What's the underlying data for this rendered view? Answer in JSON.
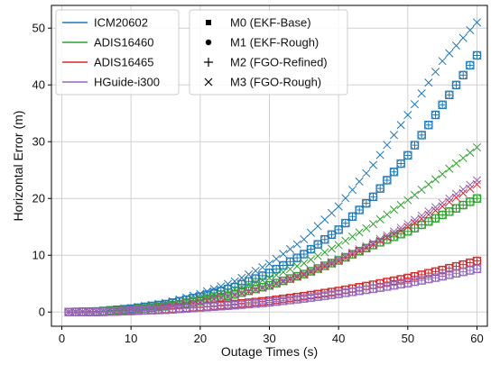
{
  "chart_data": {
    "type": "scatter",
    "xlabel": "Outage Times (s)",
    "ylabel": "Horizontal Error (m)",
    "xlim": [
      -1.5,
      61.5
    ],
    "ylim": [
      -2.5,
      54.0
    ],
    "xticks": [
      0,
      10,
      20,
      30,
      40,
      50,
      60
    ],
    "yticks": [
      0,
      10,
      20,
      30,
      40,
      50
    ],
    "xtick_labels": [
      "0",
      "10",
      "20",
      "30",
      "40",
      "50",
      "60"
    ],
    "ytick_labels": [
      "0",
      "10",
      "20",
      "30",
      "40",
      "50"
    ],
    "grid": true,
    "x": [
      1,
      2,
      3,
      4,
      5,
      6,
      7,
      8,
      9,
      10,
      11,
      12,
      13,
      14,
      15,
      16,
      17,
      18,
      19,
      20,
      21,
      22,
      23,
      24,
      25,
      26,
      27,
      28,
      29,
      30,
      31,
      32,
      33,
      34,
      35,
      36,
      37,
      38,
      39,
      40,
      41,
      42,
      43,
      44,
      45,
      46,
      47,
      48,
      49,
      50,
      51,
      52,
      53,
      54,
      55,
      56,
      57,
      58,
      59,
      60
    ],
    "colors": {
      "ICM20602": "#1f77b4",
      "ADIS16460": "#2ca02c",
      "ADIS16465": "#d62728",
      "HGuide-i300": "#9467bd"
    },
    "imu_legend": {
      "placement": "top-left",
      "entries": [
        "ICM20602",
        "ADIS16460",
        "ADIS16465",
        "HGuide-i300"
      ]
    },
    "method_legend": {
      "placement": "top-center",
      "entries": [
        {
          "marker": "square",
          "label": "M0 (EKF-Base)"
        },
        {
          "marker": "circle",
          "label": "M1 (EKF-Rough)"
        },
        {
          "marker": "plus",
          "label": "M2 (FGO-Refined)"
        },
        {
          "marker": "x",
          "label": "M3 (FGO-Rough)"
        }
      ]
    },
    "series": [
      {
        "name": "ICM20602",
        "method": "M0",
        "values_at_x": [
          [
            1,
            0.0
          ],
          [
            5,
            0.1
          ],
          [
            10,
            0.6
          ],
          [
            15,
            1.4
          ],
          [
            20,
            2.7
          ],
          [
            25,
            4.4
          ],
          [
            30,
            6.9
          ],
          [
            35,
            10.2
          ],
          [
            40,
            14.5
          ],
          [
            45,
            20.3
          ],
          [
            50,
            27.6
          ],
          [
            55,
            36.5
          ],
          [
            60,
            45.2
          ]
        ]
      },
      {
        "name": "ICM20602",
        "method": "M1",
        "values_at_x": [
          [
            1,
            0.0
          ],
          [
            5,
            0.1
          ],
          [
            10,
            0.6
          ],
          [
            15,
            1.4
          ],
          [
            20,
            2.7
          ],
          [
            25,
            4.4
          ],
          [
            30,
            6.9
          ],
          [
            35,
            10.2
          ],
          [
            40,
            14.5
          ],
          [
            45,
            20.3
          ],
          [
            50,
            27.6
          ],
          [
            55,
            36.5
          ],
          [
            60,
            45.2
          ]
        ]
      },
      {
        "name": "ICM20602",
        "method": "M2",
        "values_at_x": [
          [
            1,
            0.0
          ],
          [
            5,
            0.1
          ],
          [
            10,
            0.6
          ],
          [
            15,
            1.4
          ],
          [
            20,
            2.7
          ],
          [
            25,
            4.4
          ],
          [
            30,
            6.9
          ],
          [
            35,
            10.2
          ],
          [
            40,
            14.5
          ],
          [
            45,
            20.3
          ],
          [
            50,
            27.6
          ],
          [
            55,
            36.5
          ],
          [
            60,
            45.2
          ]
        ]
      },
      {
        "name": "ICM20602",
        "method": "M3",
        "values_at_x": [
          [
            1,
            0.0
          ],
          [
            5,
            0.1
          ],
          [
            10,
            0.7
          ],
          [
            15,
            1.6
          ],
          [
            20,
            3.2
          ],
          [
            25,
            5.4
          ],
          [
            30,
            8.5
          ],
          [
            35,
            12.8
          ],
          [
            40,
            18.6
          ],
          [
            45,
            25.9
          ],
          [
            50,
            34.7
          ],
          [
            55,
            44.2
          ],
          [
            60,
            51.0
          ]
        ]
      },
      {
        "name": "ADIS16460",
        "method": "M0",
        "values_at_x": [
          [
            1,
            0.0
          ],
          [
            5,
            0.1
          ],
          [
            10,
            0.4
          ],
          [
            15,
            1.0
          ],
          [
            20,
            1.9
          ],
          [
            25,
            3.1
          ],
          [
            30,
            4.7
          ],
          [
            35,
            6.7
          ],
          [
            40,
            9.1
          ],
          [
            45,
            11.8
          ],
          [
            50,
            14.2
          ],
          [
            55,
            17.1
          ],
          [
            60,
            20.0
          ]
        ]
      },
      {
        "name": "ADIS16460",
        "method": "M1",
        "values_at_x": [
          [
            1,
            0.0
          ],
          [
            5,
            0.1
          ],
          [
            10,
            0.4
          ],
          [
            15,
            1.0
          ],
          [
            20,
            1.9
          ],
          [
            25,
            3.1
          ],
          [
            30,
            4.7
          ],
          [
            35,
            6.7
          ],
          [
            40,
            9.1
          ],
          [
            45,
            11.8
          ],
          [
            50,
            14.2
          ],
          [
            55,
            17.1
          ],
          [
            60,
            20.0
          ]
        ]
      },
      {
        "name": "ADIS16460",
        "method": "M2",
        "values_at_x": [
          [
            1,
            0.0
          ],
          [
            5,
            0.1
          ],
          [
            10,
            0.4
          ],
          [
            15,
            1.0
          ],
          [
            20,
            1.9
          ],
          [
            25,
            3.1
          ],
          [
            30,
            4.7
          ],
          [
            35,
            6.7
          ],
          [
            40,
            9.1
          ],
          [
            45,
            11.8
          ],
          [
            50,
            14.2
          ],
          [
            55,
            17.1
          ],
          [
            60,
            20.0
          ]
        ]
      },
      {
        "name": "ADIS16460",
        "method": "M3",
        "values_at_x": [
          [
            1,
            0.0
          ],
          [
            5,
            0.1
          ],
          [
            10,
            0.5
          ],
          [
            15,
            1.2
          ],
          [
            20,
            2.4
          ],
          [
            25,
            4.0
          ],
          [
            30,
            6.0
          ],
          [
            35,
            8.6
          ],
          [
            40,
            11.8
          ],
          [
            45,
            15.5
          ],
          [
            50,
            19.7
          ],
          [
            55,
            24.3
          ],
          [
            60,
            29.0
          ]
        ]
      },
      {
        "name": "ADIS16465",
        "method": "M0",
        "values_at_x": [
          [
            1,
            0.0
          ],
          [
            5,
            0.0
          ],
          [
            10,
            0.2
          ],
          [
            15,
            0.5
          ],
          [
            20,
            0.9
          ],
          [
            25,
            1.4
          ],
          [
            30,
            2.0
          ],
          [
            35,
            2.8
          ],
          [
            40,
            3.7
          ],
          [
            45,
            4.8
          ],
          [
            50,
            6.0
          ],
          [
            55,
            7.4
          ],
          [
            60,
            9.0
          ]
        ]
      },
      {
        "name": "ADIS16465",
        "method": "M1",
        "values_at_x": [
          [
            1,
            0.0
          ],
          [
            5,
            0.0
          ],
          [
            10,
            0.2
          ],
          [
            15,
            0.5
          ],
          [
            20,
            0.9
          ],
          [
            25,
            1.4
          ],
          [
            30,
            2.0
          ],
          [
            35,
            2.8
          ],
          [
            40,
            3.7
          ],
          [
            45,
            4.8
          ],
          [
            50,
            6.0
          ],
          [
            55,
            7.4
          ],
          [
            60,
            9.0
          ]
        ]
      },
      {
        "name": "ADIS16465",
        "method": "M2",
        "values_at_x": [
          [
            1,
            0.0
          ],
          [
            5,
            0.0
          ],
          [
            10,
            0.2
          ],
          [
            15,
            0.5
          ],
          [
            20,
            0.9
          ],
          [
            25,
            1.4
          ],
          [
            30,
            2.0
          ],
          [
            35,
            2.8
          ],
          [
            40,
            3.7
          ],
          [
            45,
            4.8
          ],
          [
            50,
            6.0
          ],
          [
            55,
            7.4
          ],
          [
            60,
            9.0
          ]
        ]
      },
      {
        "name": "ADIS16465",
        "method": "M3",
        "values_at_x": [
          [
            1,
            0.0
          ],
          [
            5,
            0.1
          ],
          [
            10,
            0.4
          ],
          [
            15,
            0.9
          ],
          [
            20,
            1.8
          ],
          [
            25,
            3.0
          ],
          [
            30,
            4.6
          ],
          [
            35,
            6.6
          ],
          [
            40,
            9.0
          ],
          [
            45,
            11.9
          ],
          [
            50,
            15.0
          ],
          [
            55,
            18.6
          ],
          [
            60,
            22.5
          ]
        ]
      },
      {
        "name": "HGuide-i300",
        "method": "M0",
        "values_at_x": [
          [
            1,
            0.0
          ],
          [
            5,
            0.0
          ],
          [
            10,
            0.2
          ],
          [
            15,
            0.4
          ],
          [
            20,
            0.8
          ],
          [
            25,
            1.2
          ],
          [
            30,
            1.7
          ],
          [
            35,
            2.4
          ],
          [
            40,
            3.2
          ],
          [
            45,
            4.1
          ],
          [
            50,
            5.1
          ],
          [
            55,
            6.3
          ],
          [
            60,
            7.6
          ]
        ]
      },
      {
        "name": "HGuide-i300",
        "method": "M1",
        "values_at_x": [
          [
            1,
            0.0
          ],
          [
            5,
            0.0
          ],
          [
            10,
            0.2
          ],
          [
            15,
            0.4
          ],
          [
            20,
            0.8
          ],
          [
            25,
            1.2
          ],
          [
            30,
            1.7
          ],
          [
            35,
            2.4
          ],
          [
            40,
            3.2
          ],
          [
            45,
            4.1
          ],
          [
            50,
            5.1
          ],
          [
            55,
            6.3
          ],
          [
            60,
            7.6
          ]
        ]
      },
      {
        "name": "HGuide-i300",
        "method": "M2",
        "values_at_x": [
          [
            1,
            0.0
          ],
          [
            5,
            0.0
          ],
          [
            10,
            0.2
          ],
          [
            15,
            0.4
          ],
          [
            20,
            0.8
          ],
          [
            25,
            1.2
          ],
          [
            30,
            1.7
          ],
          [
            35,
            2.4
          ],
          [
            40,
            3.2
          ],
          [
            45,
            4.1
          ],
          [
            50,
            5.1
          ],
          [
            55,
            6.3
          ],
          [
            60,
            7.6
          ]
        ]
      },
      {
        "name": "HGuide-i300",
        "method": "M3",
        "values_at_x": [
          [
            1,
            0.0
          ],
          [
            5,
            0.1
          ],
          [
            10,
            0.4
          ],
          [
            15,
            1.0
          ],
          [
            20,
            1.9
          ],
          [
            25,
            3.1
          ],
          [
            30,
            4.7
          ],
          [
            35,
            6.8
          ],
          [
            40,
            9.3
          ],
          [
            45,
            12.2
          ],
          [
            50,
            15.5
          ],
          [
            55,
            19.2
          ],
          [
            60,
            23.2
          ]
        ]
      }
    ]
  }
}
